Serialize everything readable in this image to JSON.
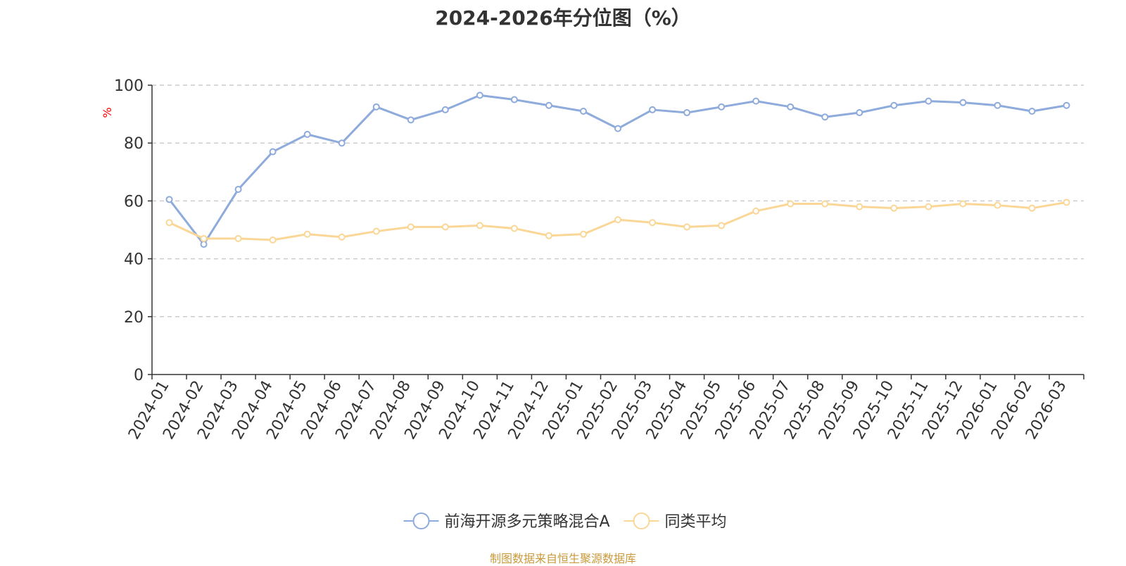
{
  "chart_data": {
    "type": "line",
    "title": "2024-2026年分位图（%）",
    "ylabel": "%",
    "xlabel": "",
    "ylim": [
      0,
      100
    ],
    "yticks": [
      0,
      20,
      40,
      60,
      80,
      100
    ],
    "grid": true,
    "legend_position": "bottom-center",
    "categories": [
      "2024-01",
      "2024-02",
      "2024-03",
      "2024-04",
      "2024-05",
      "2024-06",
      "2024-07",
      "2024-08",
      "2024-09",
      "2024-10",
      "2024-11",
      "2024-12",
      "2025-01",
      "2025-02",
      "2025-03",
      "2025-04",
      "2025-05",
      "2025-06",
      "2025-07",
      "2025-08",
      "2025-09",
      "2025-10",
      "2025-11",
      "2025-12",
      "2026-01",
      "2026-02",
      "2026-03"
    ],
    "series": [
      {
        "name": "前海开源多元策略混合A",
        "color": "#8eabdb",
        "values": [
          60.5,
          45.0,
          64.0,
          77.0,
          83.0,
          80.0,
          92.5,
          88.0,
          91.5,
          96.5,
          95.0,
          93.0,
          91.0,
          85.0,
          91.5,
          90.5,
          92.5,
          94.5,
          92.5,
          89.0,
          90.5,
          93.0,
          94.5,
          94.0,
          93.0,
          91.0,
          93.0
        ]
      },
      {
        "name": "同类平均",
        "color": "#fad796",
        "values": [
          52.5,
          47.0,
          47.0,
          46.5,
          48.5,
          47.5,
          49.5,
          51.0,
          51.0,
          51.5,
          50.5,
          48.0,
          48.5,
          53.5,
          52.5,
          51.0,
          51.5,
          56.5,
          59.0,
          59.0,
          58.0,
          57.5,
          58.0,
          59.0,
          58.5,
          57.5,
          59.5
        ]
      }
    ]
  },
  "footer": {
    "source": "制图数据来自恒生聚源数据库"
  }
}
